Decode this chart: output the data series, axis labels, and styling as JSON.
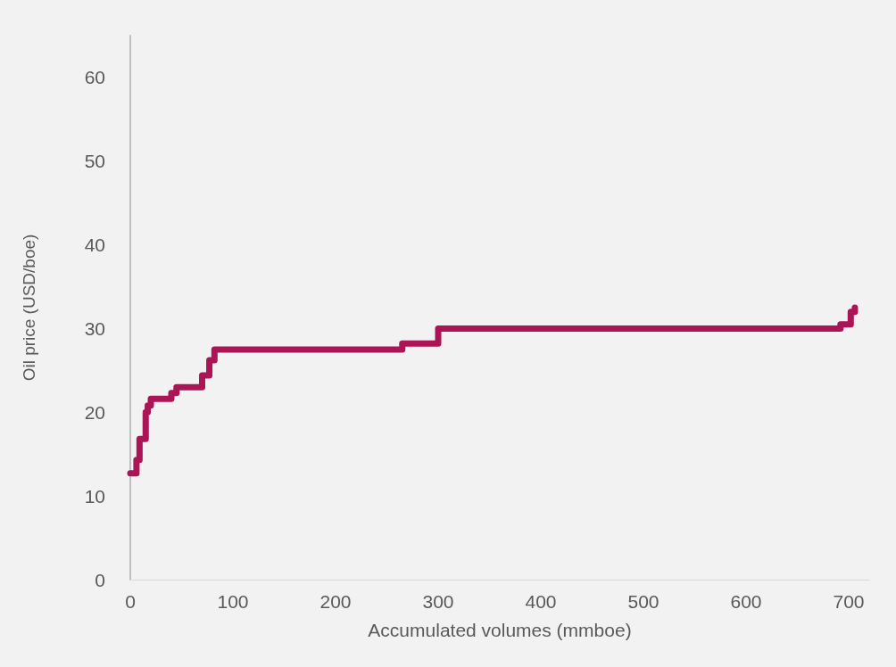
{
  "chart_data": {
    "type": "step",
    "xlabel": "Accumulated volumes (mmboe)",
    "ylabel": "Oil price (USD/boe)",
    "x": [
      0,
      6,
      9,
      15,
      17,
      20,
      40,
      45,
      70,
      77,
      82,
      265,
      300,
      692,
      702,
      706
    ],
    "series": [
      {
        "color": "#ab1556",
        "values": [
          12.7,
          14.3,
          16.8,
          20,
          20.8,
          21.6,
          22.3,
          23,
          24.4,
          26.2,
          27.5,
          28.2,
          30,
          30.5,
          32,
          32.5
        ]
      }
    ],
    "xlim": [
      0,
      720
    ],
    "xticks": [
      0,
      100,
      200,
      300,
      400,
      500,
      600,
      700
    ],
    "ylim": [
      0,
      65
    ],
    "yticks": [
      0,
      10,
      20,
      30,
      40,
      50,
      60
    ],
    "grid": false,
    "marker": "none",
    "line_style": "solid"
  }
}
